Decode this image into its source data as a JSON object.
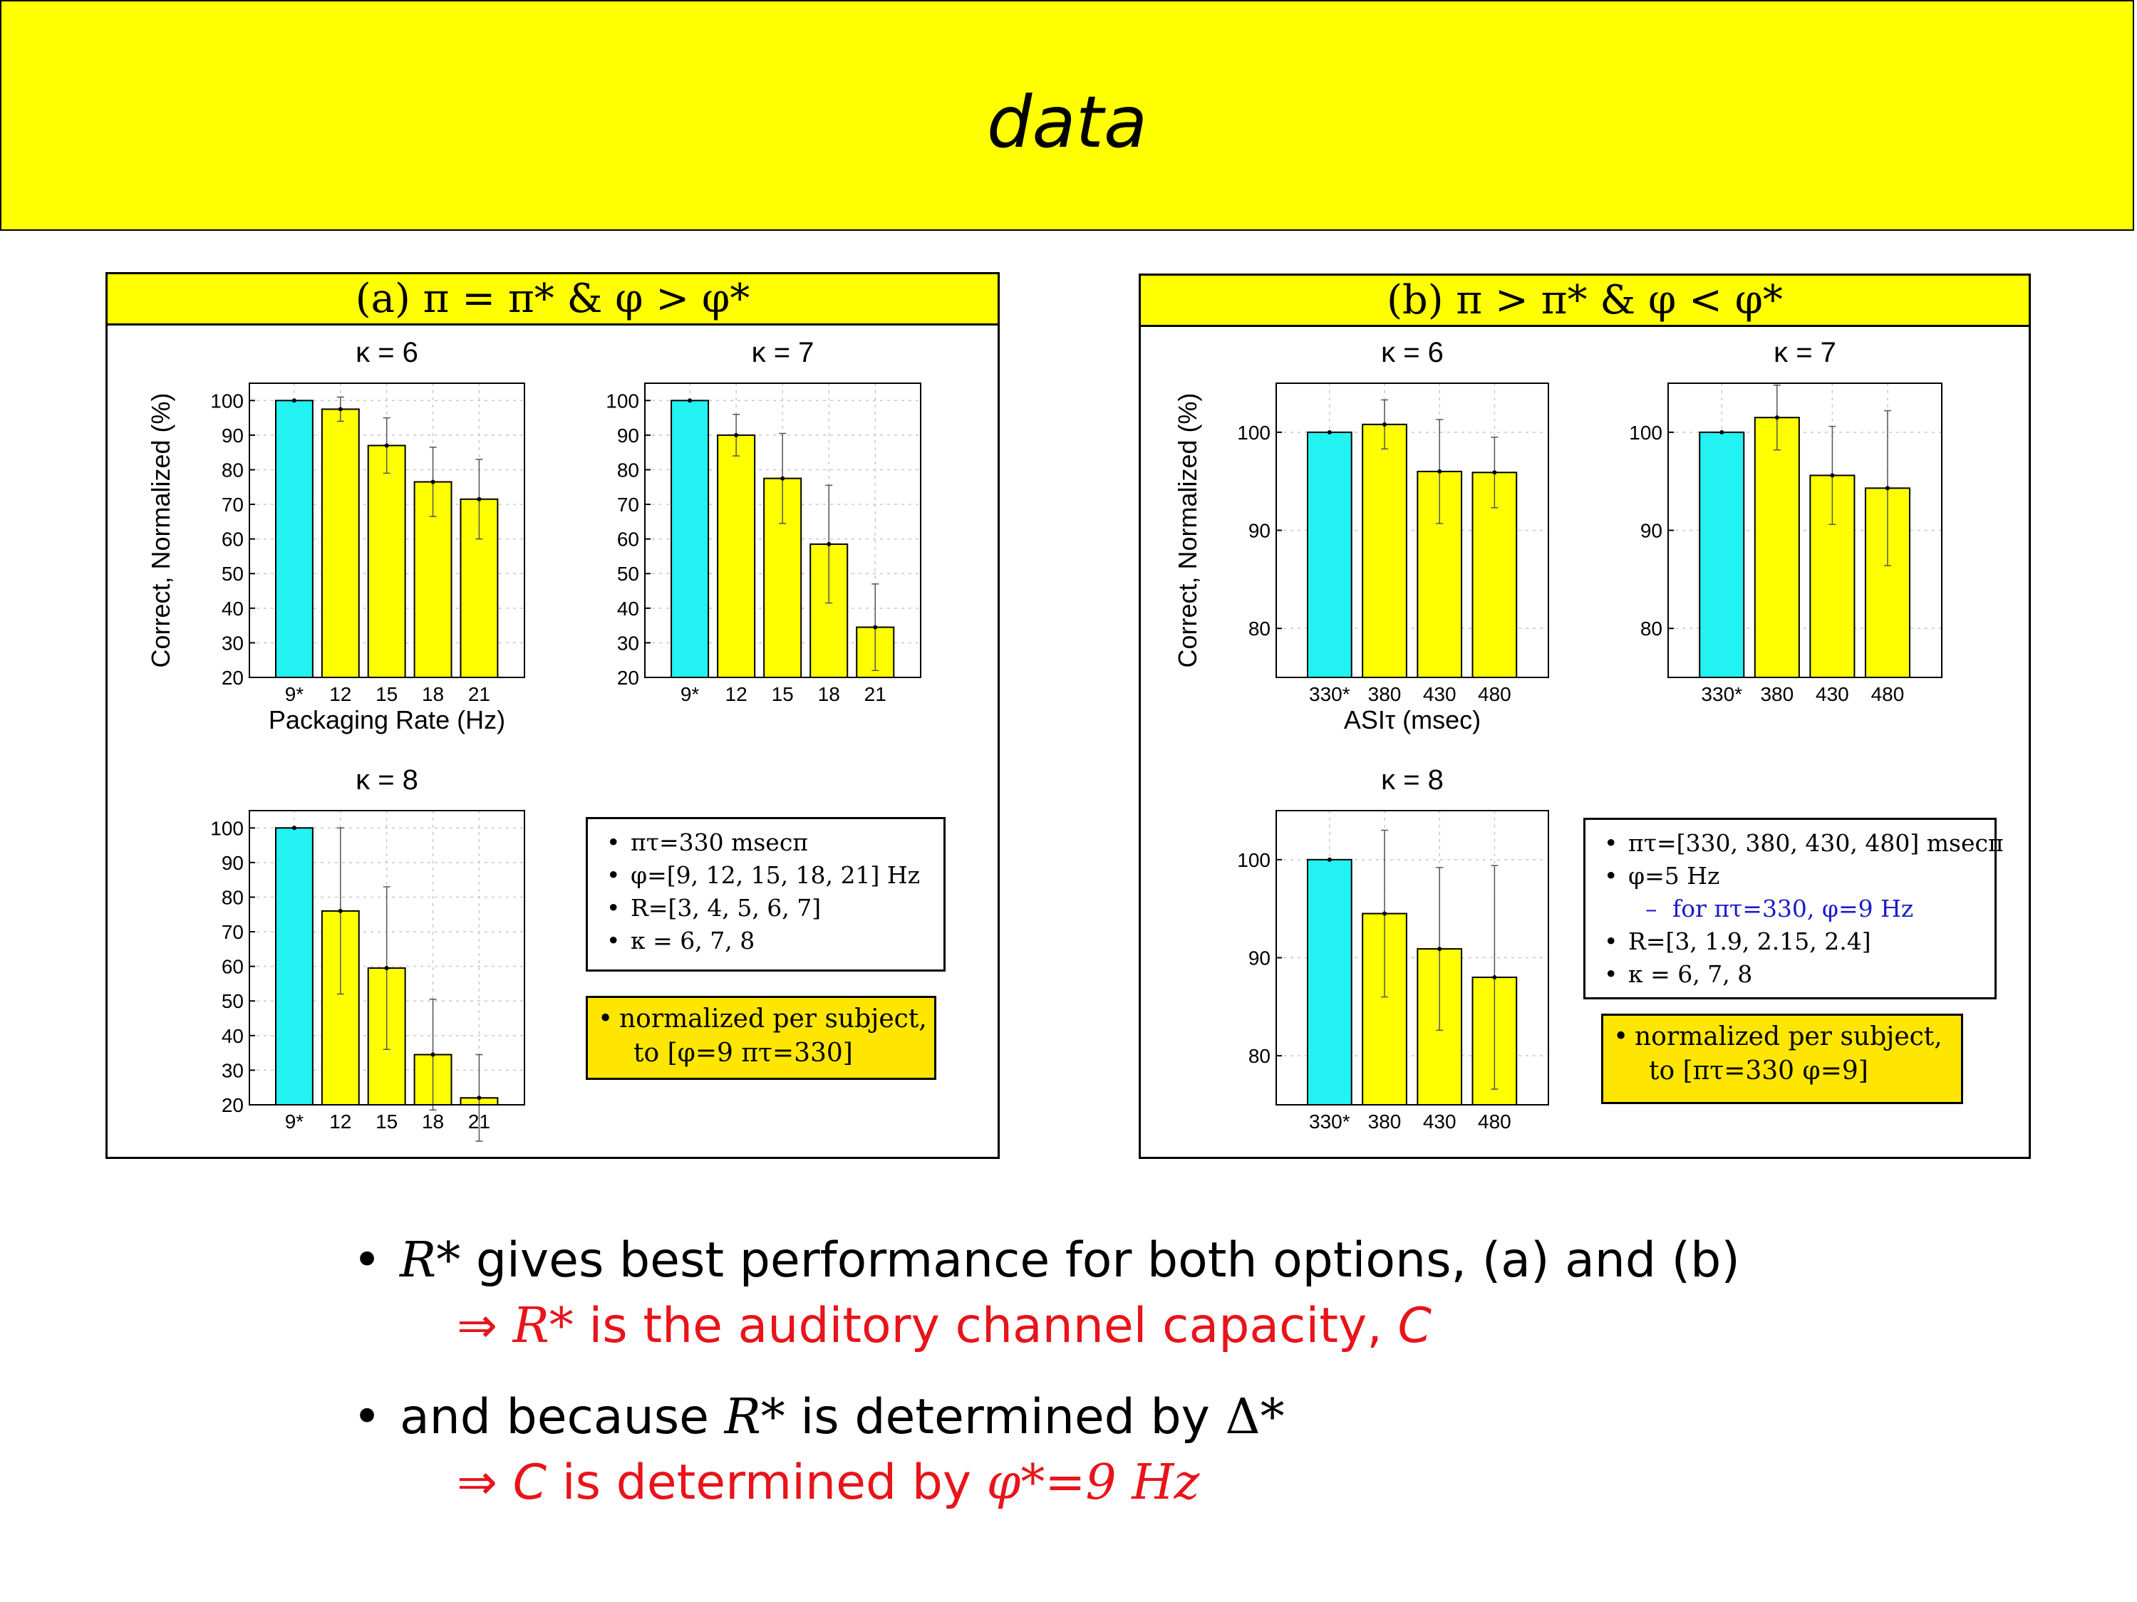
{
  "slide": {
    "title": "data"
  },
  "panels": [
    {
      "heading": "(a) π = π*   &   φ > φ*"
    },
    {
      "heading": "(b) π > π*   &   φ < φ*"
    }
  ],
  "colors": {
    "header_bg": "#ffff00",
    "reference_bar": "#22f2f2",
    "bar": "#ffff00",
    "note_bg": "#ffe600",
    "red_text": "#e8141a",
    "blue_text": "#1a1acc"
  },
  "info_a": {
    "items": [
      "πτ=330 msecπ",
      "φ=[9, 12, 15, 18, 21] Hz",
      "R=[3, 4, 5, 6, 7]",
      "κ = 6, 7, 8"
    ]
  },
  "info_b": {
    "items": [
      "πτ=[330, 380, 430, 480] msecπ",
      "φ=5 Hz",
      "for πτ=330, φ=9 Hz",
      "R=[3, 1.9, 2.15, 2.4]",
      "κ = 6, 7, 8"
    ]
  },
  "note_a": {
    "line1": "normalized per subject,",
    "line2": "to [φ=9 πτ=330]"
  },
  "note_b": {
    "line1": "normalized per subject,",
    "line2": "to [πτ=330 φ=9]"
  },
  "bullets": {
    "b1_sym": "R*",
    "b1_text": " gives best performance for both options, (a) and (b)",
    "b1_arrow": "⇒ ",
    "b1_sub_sym": "R*",
    "b1_sub_text": " is the auditory channel capacity, ",
    "b1_sub_c": "C",
    "b2_text": "and because ",
    "b2_sym": "R*",
    "b2_mid": " is determined by ",
    "b2_delta": "Δ*",
    "b2_arrow": "⇒ ",
    "b2_sub_c": "C",
    "b2_sub_text": " is determined by ",
    "b2_sub_phi": "φ*=9 Hz"
  },
  "chart_data": [
    {
      "type": "bar",
      "panel": "a",
      "title": "κ = 6",
      "xlabel": "Packaging Rate (Hz)",
      "ylabel": "Correct, Normalized (%)",
      "categories": [
        "9*",
        "12",
        "15",
        "18",
        "21"
      ],
      "values": [
        100,
        97.5,
        87,
        76.5,
        71.5
      ],
      "error": [
        0,
        3.5,
        8,
        10,
        11.5
      ],
      "ylim": [
        20,
        105
      ],
      "yticks": [
        20,
        30,
        40,
        50,
        60,
        70,
        80,
        90,
        100
      ],
      "grid": true
    },
    {
      "type": "bar",
      "panel": "a",
      "title": "κ = 7",
      "xlabel": "",
      "ylabel": "",
      "categories": [
        "9*",
        "12",
        "15",
        "18",
        "21"
      ],
      "values": [
        100,
        90,
        77.5,
        58.5,
        34.5
      ],
      "error": [
        0,
        6,
        13,
        17,
        12.5
      ],
      "ylim": [
        20,
        105
      ],
      "yticks": [
        20,
        30,
        40,
        50,
        60,
        70,
        80,
        90,
        100
      ],
      "grid": true
    },
    {
      "type": "bar",
      "panel": "a",
      "title": "κ = 8",
      "xlabel": "",
      "ylabel": "",
      "categories": [
        "9*",
        "12",
        "15",
        "18",
        "21"
      ],
      "values": [
        100,
        76,
        59.5,
        34.5,
        22
      ],
      "error": [
        0,
        24,
        23.5,
        16,
        12.5
      ],
      "ylim": [
        20,
        105
      ],
      "yticks": [
        20,
        30,
        40,
        50,
        60,
        70,
        80,
        90,
        100
      ],
      "grid": true
    },
    {
      "type": "bar",
      "panel": "b",
      "title": "κ = 6",
      "xlabel": "ASIτ (msec)",
      "ylabel": "Correct, Normalized (%)",
      "categories": [
        "330*",
        "380",
        "430",
        "480"
      ],
      "values": [
        100,
        100.8,
        96,
        95.9
      ],
      "error": [
        0,
        2.5,
        5.3,
        3.6
      ],
      "ylim": [
        75,
        105
      ],
      "yticks": [
        80,
        90,
        100
      ],
      "grid": true
    },
    {
      "type": "bar",
      "panel": "b",
      "title": "κ = 7",
      "xlabel": "",
      "ylabel": "",
      "categories": [
        "330*",
        "380",
        "430",
        "480"
      ],
      "values": [
        100,
        101.5,
        95.6,
        94.3
      ],
      "error": [
        0,
        3.3,
        5,
        7.9
      ],
      "ylim": [
        75,
        105
      ],
      "yticks": [
        80,
        90,
        100
      ],
      "grid": true
    },
    {
      "type": "bar",
      "panel": "b",
      "title": "κ = 8",
      "xlabel": "",
      "ylabel": "",
      "categories": [
        "330*",
        "380",
        "430",
        "480"
      ],
      "values": [
        100,
        94.5,
        90.9,
        88
      ],
      "error": [
        0,
        8.5,
        8.3,
        11.4
      ],
      "ylim": [
        75,
        105
      ],
      "yticks": [
        80,
        90,
        100
      ],
      "grid": true
    }
  ]
}
